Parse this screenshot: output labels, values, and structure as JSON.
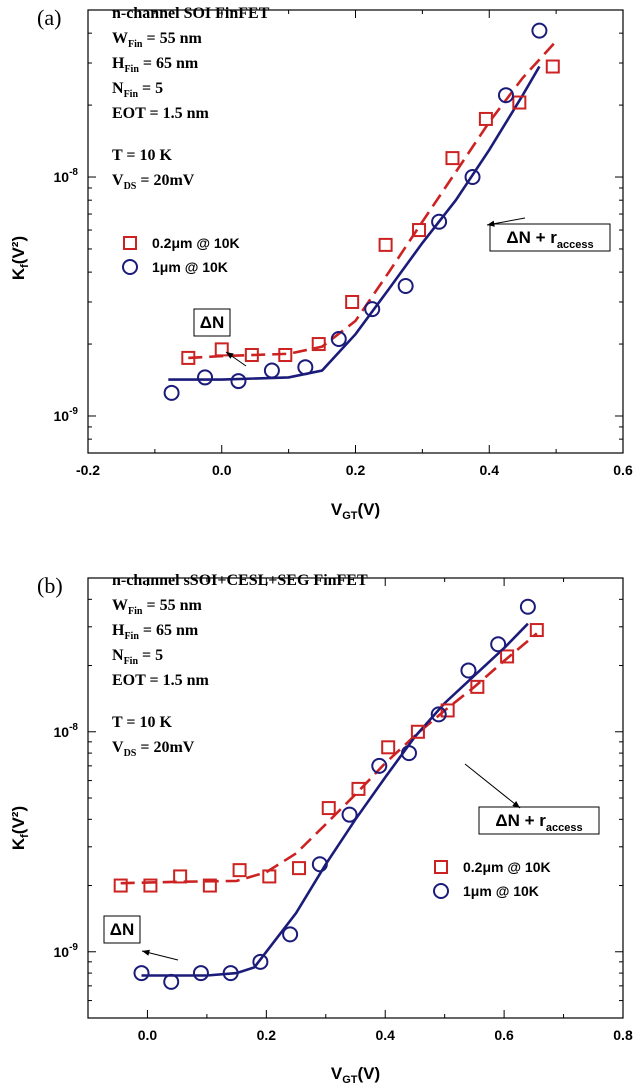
{
  "colors": {
    "square": "#cc2222",
    "circle": "#1b1b7a",
    "axis": "#000000",
    "box_border": "#000000"
  },
  "chart_data": [
    {
      "type": "scatter",
      "panel_label": "(a)",
      "header_lines": [
        "n-channel SOI FinFET"
      ],
      "params": [
        {
          "sym": "W",
          "sub": "Fin",
          "rest": " = 55 nm"
        },
        {
          "sym": "H",
          "sub": "Fin",
          "rest": " = 65 nm"
        },
        {
          "sym": "N",
          "sub": "Fin",
          "rest": " = 5"
        },
        {
          "sym": "EOT",
          "sub": "",
          "rest": " = 1.5 nm"
        }
      ],
      "conditions": [
        {
          "sym": "T",
          "sub": "",
          "rest": " = 10 K"
        },
        {
          "sym": "V",
          "sub": "DS",
          "rest": " = 20mV"
        }
      ],
      "xlabel": {
        "main": "V",
        "sub": "GT",
        "rest": "(V)"
      },
      "ylabel": {
        "main": "K",
        "sub": "f",
        "rest": "(V²)"
      },
      "xlim": [
        -0.2,
        0.6
      ],
      "xticks": [
        -0.2,
        0.0,
        0.2,
        0.4,
        0.6
      ],
      "xtick_labels": [
        "-0.2",
        "0.0",
        "0.2",
        "0.4",
        "0.6"
      ],
      "ylog": true,
      "ylim": [
        7e-10,
        5e-08
      ],
      "yticks": [
        1e-09,
        1e-08
      ],
      "ytick_labels": [
        {
          "base": "10",
          "exp": "-9"
        },
        {
          "base": "10",
          "exp": "-8"
        }
      ],
      "legend_position": "left",
      "legend": [
        "0.2μm @ 10K",
        "1μm @ 10K"
      ],
      "annotations": [
        {
          "main": "ΔN",
          "sub": "",
          "box": true
        },
        {
          "main": "ΔN + r",
          "sub": "access",
          "box": true
        }
      ],
      "series": [
        {
          "name": "0.2μm @ 10K",
          "marker": "square",
          "x": [
            -0.05,
            0.0,
            0.045,
            0.095,
            0.145,
            0.195,
            0.245,
            0.295,
            0.345,
            0.395,
            0.445,
            0.495
          ],
          "y": [
            1.75e-09,
            1.9e-09,
            1.8e-09,
            1.8e-09,
            2e-09,
            3e-09,
            5.2e-09,
            6e-09,
            1.2e-08,
            1.75e-08,
            2.05e-08,
            2.9e-08
          ]
        },
        {
          "name": "1μm @ 10K",
          "marker": "circle",
          "x": [
            -0.075,
            -0.025,
            0.025,
            0.075,
            0.125,
            0.175,
            0.225,
            0.275,
            0.325,
            0.375,
            0.425,
            0.475
          ],
          "y": [
            1.25e-09,
            1.45e-09,
            1.4e-09,
            1.55e-09,
            1.6e-09,
            2.1e-09,
            2.8e-09,
            3.5e-09,
            6.5e-09,
            1e-08,
            2.2e-08,
            4.1e-08
          ]
        }
      ],
      "fits": [
        {
          "marker": "square",
          "style": "dashed",
          "x": [
            -0.05,
            0.0,
            0.1,
            0.15,
            0.2,
            0.25,
            0.3,
            0.35,
            0.4,
            0.45,
            0.5
          ],
          "y": [
            1.75e-09,
            1.78e-09,
            1.82e-09,
            1.95e-09,
            2.5e-09,
            4e-09,
            6.5e-09,
            1.05e-08,
            1.7e-08,
            2.6e-08,
            3.7e-08
          ]
        },
        {
          "marker": "circle",
          "style": "solid",
          "x": [
            -0.08,
            0.0,
            0.1,
            0.15,
            0.2,
            0.25,
            0.3,
            0.35,
            0.4,
            0.45,
            0.475
          ],
          "y": [
            1.42e-09,
            1.42e-09,
            1.45e-09,
            1.55e-09,
            2.2e-09,
            3.4e-09,
            5.3e-09,
            8e-09,
            1.3e-08,
            2.2e-08,
            2.9e-08
          ]
        }
      ]
    },
    {
      "type": "scatter",
      "panel_label": "(b)",
      "header_lines": [
        "n-channel sSOI+CESL+SEG FinFET"
      ],
      "params": [
        {
          "sym": "W",
          "sub": "Fin",
          "rest": " = 55 nm"
        },
        {
          "sym": "H",
          "sub": "Fin",
          "rest": " = 65 nm"
        },
        {
          "sym": "N",
          "sub": "Fin",
          "rest": " = 5"
        },
        {
          "sym": "EOT",
          "sub": "",
          "rest": " = 1.5 nm"
        }
      ],
      "conditions": [
        {
          "sym": "T",
          "sub": "",
          "rest": " = 10 K"
        },
        {
          "sym": "V",
          "sub": "DS",
          "rest": " = 20mV"
        }
      ],
      "xlabel": {
        "main": "V",
        "sub": "GT",
        "rest": "(V)"
      },
      "ylabel": {
        "main": "K",
        "sub": "f",
        "rest": "(V²)"
      },
      "xlim": [
        -0.1,
        0.8
      ],
      "xticks": [
        0.0,
        0.2,
        0.4,
        0.6,
        0.8
      ],
      "xtick_labels": [
        "0.0",
        "0.2",
        "0.4",
        "0.6",
        "0.8"
      ],
      "ylog": true,
      "ylim": [
        5e-10,
        5e-08
      ],
      "yticks": [
        1e-09,
        1e-08
      ],
      "ytick_labels": [
        {
          "base": "10",
          "exp": "-9"
        },
        {
          "base": "10",
          "exp": "-8"
        }
      ],
      "legend_position": "bottom-right",
      "legend": [
        "0.2μm @ 10K",
        "1μm @ 10K"
      ],
      "annotations": [
        {
          "main": "ΔN",
          "sub": "",
          "box": true
        },
        {
          "main": "ΔN + r",
          "sub": "access",
          "box": true
        }
      ],
      "series": [
        {
          "name": "0.2μm @ 10K",
          "marker": "square",
          "x": [
            -0.045,
            0.005,
            0.055,
            0.105,
            0.155,
            0.205,
            0.255,
            0.305,
            0.355,
            0.405,
            0.455,
            0.505,
            0.555,
            0.605,
            0.655
          ],
          "y": [
            2e-09,
            2e-09,
            2.2e-09,
            2e-09,
            2.35e-09,
            2.2e-09,
            2.4e-09,
            4.5e-09,
            5.5e-09,
            8.5e-09,
            1e-08,
            1.25e-08,
            1.6e-08,
            2.2e-08,
            2.9e-08
          ]
        },
        {
          "name": "1μm @ 10K",
          "marker": "circle",
          "x": [
            -0.01,
            0.04,
            0.09,
            0.14,
            0.19,
            0.24,
            0.29,
            0.34,
            0.39,
            0.44,
            0.49,
            0.54,
            0.59,
            0.64
          ],
          "y": [
            8e-10,
            7.3e-10,
            8e-10,
            8e-10,
            9e-10,
            1.2e-09,
            2.5e-09,
            4.2e-09,
            7e-09,
            8e-09,
            1.2e-08,
            1.9e-08,
            2.5e-08,
            3.7e-08
          ]
        }
      ],
      "fits": [
        {
          "marker": "square",
          "style": "dashed",
          "x": [
            -0.045,
            0.05,
            0.15,
            0.2,
            0.25,
            0.3,
            0.35,
            0.4,
            0.45,
            0.5,
            0.55,
            0.6,
            0.655
          ],
          "y": [
            2.05e-09,
            2.08e-09,
            2.1e-09,
            2.3e-09,
            2.8e-09,
            3.8e-09,
            5.2e-09,
            7.2e-09,
            9.6e-09,
            1.25e-08,
            1.6e-08,
            2.1e-08,
            2.8e-08
          ]
        },
        {
          "marker": "circle",
          "style": "solid",
          "x": [
            -0.01,
            0.05,
            0.1,
            0.15,
            0.18,
            0.2,
            0.25,
            0.3,
            0.35,
            0.4,
            0.45,
            0.5,
            0.55,
            0.6,
            0.64
          ],
          "y": [
            7.8e-10,
            7.8e-10,
            7.8e-10,
            8e-10,
            8.5e-10,
            1e-09,
            1.5e-09,
            2.5e-09,
            4e-09,
            6.2e-09,
            9.5e-09,
            1.35e-08,
            1.8e-08,
            2.4e-08,
            3.1e-08
          ]
        }
      ]
    }
  ]
}
